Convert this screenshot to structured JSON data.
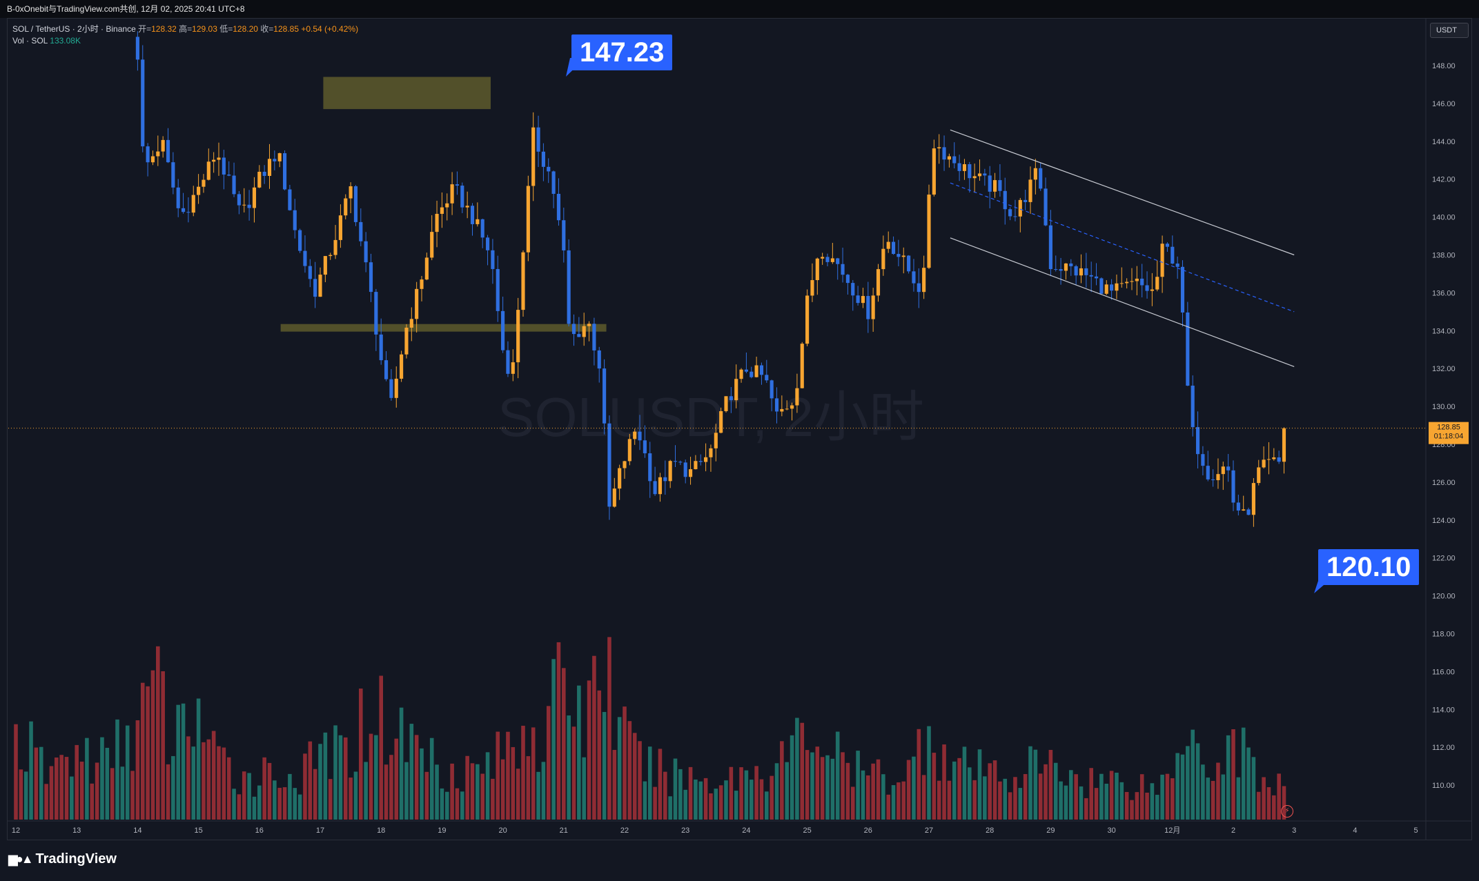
{
  "header": {
    "share_text": "B-0xOnebit与TradingView.com共创, 12月 02, 2025 20:41 UTC+8"
  },
  "legend": {
    "symbol": "SOL / TetherUS · 2小时 · Binance",
    "open_label": "开=",
    "open": "128.32",
    "high_label": "高=",
    "high": "129.03",
    "low_label": "低=",
    "low": "128.20",
    "close_label": "收=",
    "close": "128.85",
    "change": "+0.54 (+0.42%)",
    "vol_label": "Vol · SOL",
    "vol_value": "133.08K"
  },
  "currency_button": "USDT",
  "watermark": "SOLUSDT, 2小时",
  "callouts": {
    "high": "147.23",
    "low": "120.10"
  },
  "last_price_tag": {
    "price": "128.85",
    "countdown": "01:18:04"
  },
  "branding": "TradingView",
  "colors": {
    "background": "#131722",
    "up_candle": "#f7a531",
    "down_candle": "#2f6fe0",
    "vol_up": "#1f6f68",
    "vol_down": "#8f2c34",
    "zone": "#5e5a2c",
    "callout": "#2962ff"
  },
  "chart_data": {
    "type": "candlestick",
    "x_tick_labels": [
      "12",
      "13",
      "14",
      "15",
      "16",
      "17",
      "18",
      "19",
      "20",
      "21",
      "22",
      "23",
      "24",
      "25",
      "26",
      "27",
      "28",
      "29",
      "30",
      "12月",
      "2",
      "3",
      "4",
      "5"
    ],
    "y_tick_labels": [
      "110.00",
      "112.00",
      "114.00",
      "116.00",
      "118.00",
      "120.00",
      "122.00",
      "124.00",
      "126.00",
      "128.00",
      "130.00",
      "132.00",
      "134.00",
      "136.00",
      "138.00",
      "140.00",
      "142.00",
      "144.00",
      "146.00",
      "148.00"
    ],
    "ylim": [
      108,
      150
    ],
    "price_path": [
      [
        14.0,
        148.6
      ],
      [
        14.1,
        142.5
      ],
      [
        14.4,
        144.0
      ],
      [
        14.7,
        140.0
      ],
      [
        15.0,
        141.5
      ],
      [
        15.3,
        143.5
      ],
      [
        15.7,
        140.0
      ],
      [
        16.0,
        142.0
      ],
      [
        16.3,
        143.5
      ],
      [
        16.6,
        139.0
      ],
      [
        16.9,
        136.0
      ],
      [
        17.2,
        138.5
      ],
      [
        17.5,
        141.5
      ],
      [
        17.8,
        136.5
      ],
      [
        18.0,
        132.5
      ],
      [
        18.15,
        129.8
      ],
      [
        18.4,
        134.0
      ],
      [
        18.6,
        136.0
      ],
      [
        18.9,
        140.0
      ],
      [
        19.2,
        141.5
      ],
      [
        19.5,
        140.0
      ],
      [
        19.8,
        138.0
      ],
      [
        20.0,
        133.0
      ],
      [
        20.15,
        131.5
      ],
      [
        20.35,
        139.0
      ],
      [
        20.5,
        144.3
      ],
      [
        20.8,
        142.0
      ],
      [
        21.0,
        138.0
      ],
      [
        21.1,
        133.5
      ],
      [
        21.4,
        134.5
      ],
      [
        21.6,
        132.0
      ],
      [
        21.75,
        124.6
      ],
      [
        21.95,
        126.8
      ],
      [
        22.2,
        129.0
      ],
      [
        22.5,
        125.5
      ],
      [
        22.8,
        127.0
      ],
      [
        23.1,
        126.5
      ],
      [
        23.4,
        127.5
      ],
      [
        23.7,
        130.5
      ],
      [
        24.0,
        132.0
      ],
      [
        24.3,
        131.5
      ],
      [
        24.5,
        129.5
      ],
      [
        24.8,
        130.5
      ],
      [
        25.0,
        135.5
      ],
      [
        25.2,
        138.5
      ],
      [
        25.5,
        137.5
      ],
      [
        25.8,
        136.0
      ],
      [
        26.0,
        135.0
      ],
      [
        26.3,
        139.0
      ],
      [
        26.6,
        137.5
      ],
      [
        26.9,
        136.0
      ],
      [
        27.05,
        144.0
      ],
      [
        27.4,
        143.0
      ],
      [
        27.8,
        142.0
      ],
      [
        28.1,
        141.5
      ],
      [
        28.4,
        140.0
      ],
      [
        28.8,
        142.5
      ],
      [
        29.0,
        137.5
      ],
      [
        29.3,
        137.3
      ],
      [
        29.6,
        136.9
      ],
      [
        30.0,
        136.0
      ],
      [
        30.4,
        136.5
      ],
      [
        30.7,
        136.0
      ],
      [
        30.85,
        138.5
      ],
      [
        31.1,
        137.5
      ],
      [
        31.3,
        128.8
      ],
      [
        31.6,
        126.4
      ],
      [
        31.9,
        126.9
      ],
      [
        32.0,
        125.0
      ],
      [
        32.2,
        124.0
      ],
      [
        32.4,
        126.5
      ],
      [
        32.6,
        127.0
      ],
      [
        32.75,
        127.0
      ],
      [
        32.85,
        128.85
      ]
    ],
    "volume_path": [
      [
        12.0,
        38
      ],
      [
        12.5,
        22
      ],
      [
        13.0,
        30
      ],
      [
        13.5,
        26
      ],
      [
        14.0,
        45
      ],
      [
        14.3,
        60
      ],
      [
        14.6,
        32
      ],
      [
        14.9,
        55
      ],
      [
        15.3,
        25
      ],
      [
        15.8,
        20
      ],
      [
        16.3,
        22
      ],
      [
        16.7,
        18
      ],
      [
        17.0,
        32
      ],
      [
        17.4,
        28
      ],
      [
        17.9,
        55
      ],
      [
        18.1,
        40
      ],
      [
        18.4,
        38
      ],
      [
        18.7,
        32
      ],
      [
        19.0,
        25
      ],
      [
        19.5,
        22
      ],
      [
        19.9,
        28
      ],
      [
        20.2,
        35
      ],
      [
        20.4,
        50
      ],
      [
        20.7,
        30
      ],
      [
        21.0,
        75
      ],
      [
        21.3,
        40
      ],
      [
        21.6,
        80
      ],
      [
        21.8,
        55
      ],
      [
        22.1,
        30
      ],
      [
        22.5,
        22
      ],
      [
        23.0,
        20
      ],
      [
        23.5,
        18
      ],
      [
        24.0,
        22
      ],
      [
        24.5,
        25
      ],
      [
        25.0,
        40
      ],
      [
        25.3,
        35
      ],
      [
        25.7,
        22
      ],
      [
        26.2,
        20
      ],
      [
        26.7,
        22
      ],
      [
        27.0,
        45
      ],
      [
        27.3,
        25
      ],
      [
        27.8,
        22
      ],
      [
        28.3,
        20
      ],
      [
        28.8,
        25
      ],
      [
        29.2,
        22
      ],
      [
        29.7,
        18
      ],
      [
        30.2,
        18
      ],
      [
        30.7,
        15
      ],
      [
        31.0,
        20
      ],
      [
        31.3,
        58
      ],
      [
        31.5,
        30
      ],
      [
        31.8,
        22
      ],
      [
        32.0,
        40
      ],
      [
        32.2,
        28
      ],
      [
        32.5,
        18
      ],
      [
        32.85,
        15
      ]
    ],
    "volume_max": 85,
    "zones": [
      {
        "x_start": 17.05,
        "x_end": 19.8,
        "y_low": 145.7,
        "y_high": 147.4
      },
      {
        "x_start": 16.35,
        "x_end": 21.7,
        "y_low": 133.95,
        "y_high": 134.35
      }
    ],
    "channel_lines": [
      {
        "style": "solid",
        "from": [
          27.35,
          144.6
        ],
        "to": [
          33.0,
          138.0
        ]
      },
      {
        "style": "solid",
        "from": [
          27.35,
          138.9
        ],
        "to": [
          33.0,
          132.1
        ]
      },
      {
        "style": "dashed",
        "from": [
          27.35,
          141.8
        ],
        "to": [
          33.0,
          135.0
        ]
      }
    ],
    "last_price": 128.85
  }
}
